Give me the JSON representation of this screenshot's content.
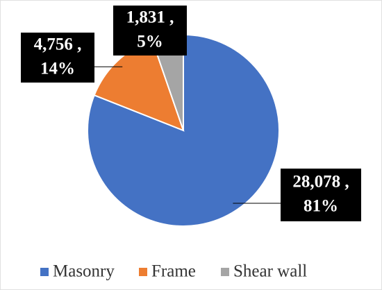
{
  "chart_data": {
    "type": "pie",
    "categories": [
      "Masonry",
      "Frame",
      "Shear wall"
    ],
    "values": [
      28078,
      4756,
      1831
    ],
    "value_labels": [
      "28,078 ,",
      "4,756 ,",
      "1,831 ,"
    ],
    "percent_labels": [
      "81%",
      "14%",
      "5%"
    ],
    "colors": [
      "#4472c4",
      "#ed7d31",
      "#a5a5a5"
    ],
    "legend": "bottom"
  }
}
